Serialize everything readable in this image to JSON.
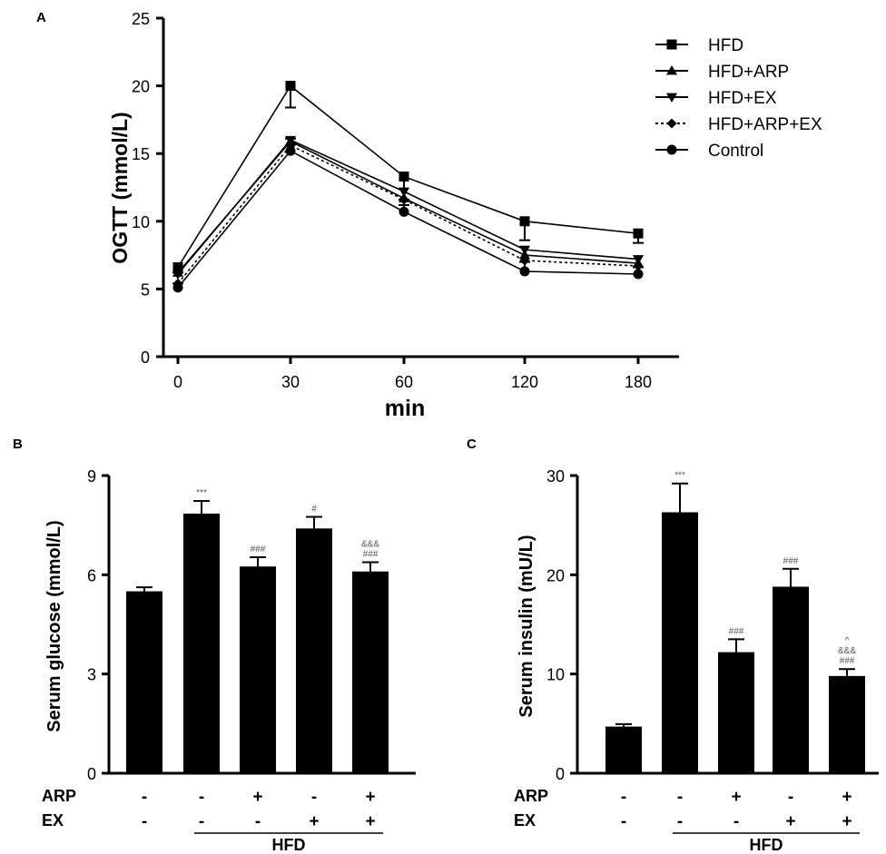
{
  "panel_labels": [
    "A",
    "B",
    "C"
  ],
  "legend": [
    {
      "label": "HFD",
      "marker": "square-icon",
      "dash": false
    },
    {
      "label": "HFD+ARP",
      "marker": "triangle-up-icon",
      "dash": false
    },
    {
      "label": "HFD+EX",
      "marker": "triangle-down-icon",
      "dash": false
    },
    {
      "label": "HFD+ARP+EX",
      "marker": "diamond-icon",
      "dash": true
    },
    {
      "label": "Control",
      "marker": "circle-icon",
      "dash": false
    }
  ],
  "treatment_rows": {
    "labels": [
      "ARP",
      "EX"
    ],
    "arp": [
      "-",
      "-",
      "+",
      "-",
      "+"
    ],
    "ex": [
      "-",
      "-",
      "-",
      "+",
      "+"
    ],
    "group_label": "HFD"
  },
  "chart_data": [
    {
      "type": "line",
      "panel": "A",
      "xlabel": "min",
      "ylabel": "OGTT (mmol/L)",
      "x": [
        0,
        30,
        60,
        120,
        180
      ],
      "xticks": [
        "0",
        "30",
        "60",
        "120",
        "180"
      ],
      "ylim": [
        0,
        25
      ],
      "yticks": [
        0,
        5,
        10,
        15,
        20,
        25
      ],
      "series": [
        {
          "name": "HFD",
          "marker": "square",
          "values": [
            6.6,
            20.0,
            13.3,
            10.0,
            9.1
          ],
          "errors": [
            0.4,
            1.6,
            2.1,
            1.4,
            0.7
          ]
        },
        {
          "name": "HFD+ARP",
          "marker": "triangle-up",
          "values": [
            6.2,
            15.9,
            11.7,
            7.5,
            6.9
          ],
          "errors": [
            0.3,
            1.1,
            1.0,
            0.9,
            0.5
          ]
        },
        {
          "name": "HFD+EX",
          "marker": "triangle-down",
          "values": [
            6.1,
            16.0,
            12.2,
            7.9,
            7.2
          ],
          "errors": [
            0.3,
            1.2,
            1.1,
            0.9,
            0.5
          ]
        },
        {
          "name": "HFD+ARP+EX",
          "marker": "diamond",
          "values": [
            5.4,
            15.6,
            11.6,
            7.1,
            6.7
          ],
          "errors": [
            0.3,
            1.0,
            1.0,
            0.8,
            0.5
          ]
        },
        {
          "name": "Control",
          "marker": "circle",
          "values": [
            5.1,
            15.2,
            10.7,
            6.3,
            6.1
          ],
          "errors": [
            0.3,
            0.9,
            0.9,
            0.7,
            0.5
          ]
        }
      ]
    },
    {
      "type": "bar",
      "panel": "B",
      "ylabel": "Serum glucose (mmol/L)",
      "ylim": [
        0,
        9
      ],
      "yticks": [
        0,
        3,
        6,
        9
      ],
      "values": [
        5.5,
        7.85,
        6.25,
        7.4,
        6.1
      ],
      "errors": [
        0.12,
        0.38,
        0.28,
        0.35,
        0.28
      ],
      "annotations": [
        [],
        [
          "***"
        ],
        [
          "###"
        ],
        [
          "#"
        ],
        [
          "&&&",
          "###"
        ]
      ]
    },
    {
      "type": "bar",
      "panel": "C",
      "ylabel": "Serum insulin (mU/L)",
      "ylim": [
        0,
        30
      ],
      "yticks": [
        0,
        10,
        20,
        30
      ],
      "values": [
        4.7,
        26.3,
        12.2,
        18.8,
        9.8
      ],
      "errors": [
        0.25,
        2.9,
        1.3,
        1.8,
        0.7
      ],
      "annotations": [
        [],
        [
          "***"
        ],
        [
          "###"
        ],
        [
          "###"
        ],
        [
          "^",
          "&&&",
          "###"
        ]
      ]
    }
  ]
}
